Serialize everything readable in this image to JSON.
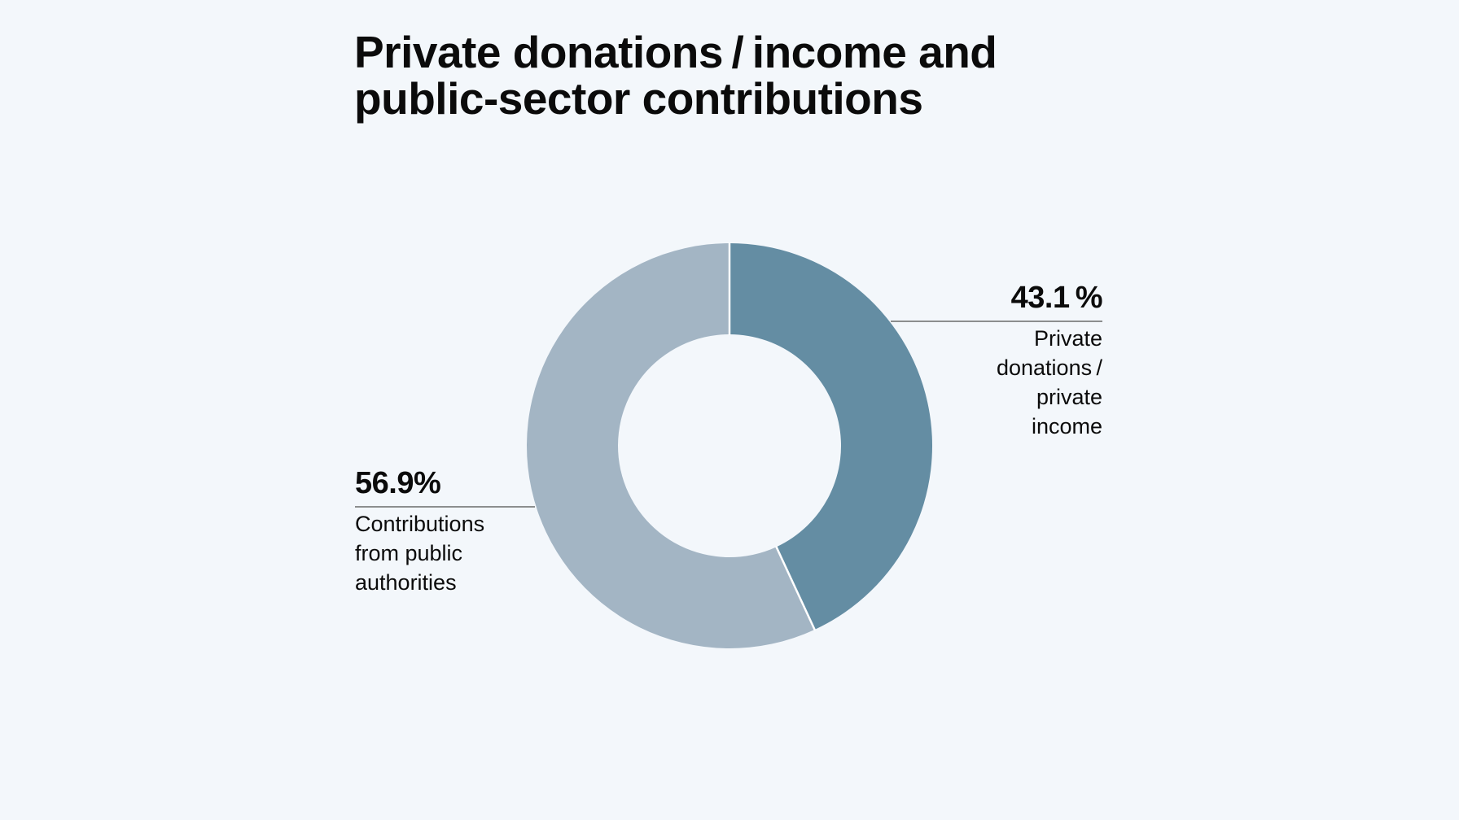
{
  "title_lines": [
    "Private donations / income and",
    "public-sector contributions"
  ],
  "colors": {
    "background": "#f3f7fb",
    "private": "#648da3",
    "public": "#a3b5c4",
    "leader_line": "#6b6b6b",
    "separator": "#ffffff"
  },
  "chart_data": {
    "type": "pie",
    "title": "Private donations / income and public-sector contributions",
    "hole": "donut",
    "slices": [
      {
        "value": 43.1,
        "label_pct": "43.1 %",
        "desc_lines": [
          "Private",
          "donations /",
          "private",
          "income"
        ],
        "color": "#648da3",
        "label_side": "right"
      },
      {
        "value": 56.9,
        "label_pct": "56.9%",
        "desc_lines": [
          "Contributions",
          "from public",
          "authorities"
        ],
        "color": "#a3b5c4",
        "label_side": "left"
      }
    ]
  }
}
